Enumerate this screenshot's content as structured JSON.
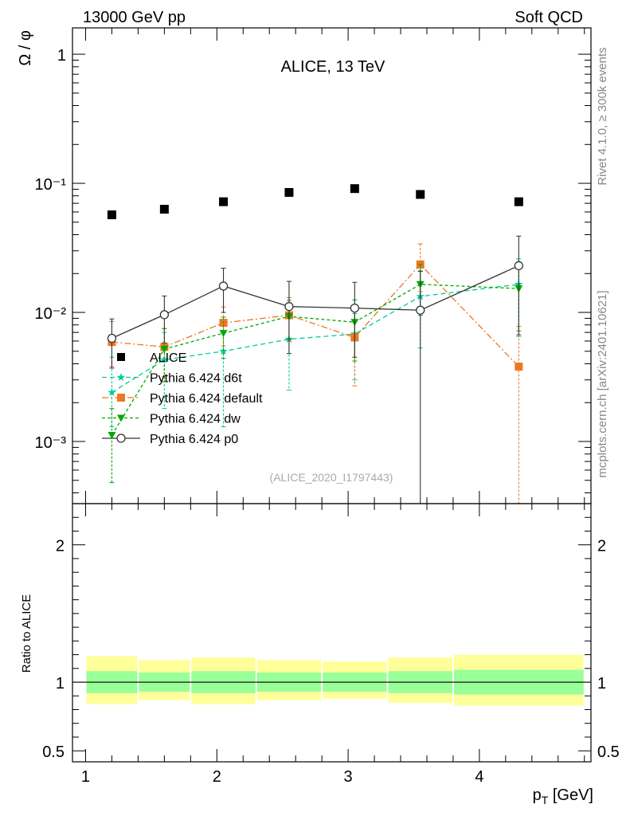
{
  "header": {
    "left_label": "13000 GeV pp",
    "right_label": "Soft QCD",
    "right_side_text": "Rivet 4.1.0, ≥ 300k events",
    "right_side_text2": "mcplots.cern.ch [arXiv:2401.10621]"
  },
  "chart_data": {
    "type": "scatter",
    "title": "ALICE, 13 TeV",
    "analysis_id": "(ALICE_2020_I1797443)",
    "xlabel": "p_T [GeV]",
    "ylabel": "Ω / φ",
    "ratio_ylabel": "Ratio to ALICE",
    "xlim": [
      0.9,
      4.85
    ],
    "ylim": [
      0.00033,
      1.6
    ],
    "yscale": "log",
    "ratio_ylim": [
      0.42,
      2.3
    ],
    "x_ticks": [
      "1",
      "2",
      "3",
      "4"
    ],
    "y_tick_labels": [
      {
        "value": 1,
        "label": "1"
      },
      {
        "value": 0.1,
        "label": "10⁻¹"
      },
      {
        "value": 0.01,
        "label": "10⁻²"
      },
      {
        "value": 0.001,
        "label": "10⁻³"
      }
    ],
    "ratio_ticks": [
      {
        "value": 0.5,
        "label": "0.5"
      },
      {
        "value": 1,
        "label": "1"
      },
      {
        "value": 2,
        "label": "2"
      }
    ],
    "data": {
      "name": "ALICE",
      "color": "#000000",
      "bins": [
        [
          1.0,
          1.4
        ],
        [
          1.4,
          1.8
        ],
        [
          1.8,
          2.3
        ],
        [
          2.3,
          2.8
        ],
        [
          2.8,
          3.3
        ],
        [
          3.3,
          3.8
        ],
        [
          3.8,
          4.8
        ]
      ],
      "x": [
        1.2,
        1.6,
        2.05,
        2.55,
        3.05,
        3.55,
        4.3
      ],
      "y": [
        0.057,
        0.063,
        0.072,
        0.085,
        0.091,
        0.082,
        0.072
      ],
      "stat_rel": [
        0.08,
        0.07,
        0.08,
        0.07,
        0.07,
        0.08,
        0.09
      ],
      "tot_up_rel": [
        0.19,
        0.16,
        0.18,
        0.16,
        0.15,
        0.18,
        0.2
      ],
      "tot_dn_rel": [
        0.16,
        0.13,
        0.16,
        0.13,
        0.12,
        0.15,
        0.17
      ]
    },
    "series": [
      {
        "name": "Pythia 6.424 d6t",
        "color": "#00cc99",
        "marker": "star",
        "dash": "6,4",
        "x": [
          1.2,
          1.6,
          2.05,
          2.55,
          3.05,
          3.55,
          4.3
        ],
        "y": [
          0.0024,
          0.0043,
          0.005,
          0.0062,
          0.0068,
          0.0133,
          0.0165
        ],
        "err_lo": [
          0.0013,
          0.0018,
          0.0013,
          0.0025,
          0.003,
          0.0053,
          0.0065
        ],
        "err_hi": [
          0.0045,
          0.007,
          0.0085,
          0.009,
          0.0098,
          0.021,
          0.026
        ]
      },
      {
        "name": "Pythia 6.424 default",
        "color": "#ee7722",
        "marker": "square",
        "dash": "8,3,2,3",
        "x": [
          1.2,
          1.6,
          2.05,
          2.55,
          3.05,
          3.55,
          4.3
        ],
        "y": [
          0.0059,
          0.0054,
          0.0083,
          0.0095,
          0.0064,
          0.0235,
          0.0038
        ],
        "err_lo": [
          0.0038,
          0.0032,
          0.0055,
          0.006,
          0.0027,
          0.0145,
          0.0003
        ],
        "err_hi": [
          0.0085,
          0.0075,
          0.011,
          0.013,
          0.0105,
          0.034,
          0.0078
        ]
      },
      {
        "name": "Pythia 6.424 dw",
        "color": "#00aa00",
        "marker": "triangle",
        "dash": "4,3",
        "x": [
          1.2,
          1.6,
          2.05,
          2.55,
          3.05,
          3.55,
          4.3
        ],
        "y": [
          0.00112,
          0.0052,
          0.0069,
          0.0093,
          0.0084,
          0.0165,
          0.0153
        ],
        "err_lo": [
          0.00048,
          0.0029,
          0.0044,
          0.0062,
          0.0042,
          0.0095,
          0.0072
        ],
        "err_hi": [
          0.0018,
          0.0075,
          0.0092,
          0.0124,
          0.0125,
          0.0235,
          0.024
        ]
      },
      {
        "name": "Pythia 6.424 p0",
        "color": "#333333",
        "marker": "circle",
        "dash": "",
        "x": [
          1.2,
          1.6,
          2.05,
          2.55,
          3.05,
          3.55,
          4.3
        ],
        "y": [
          0.0063,
          0.0096,
          0.016,
          0.0111,
          0.0108,
          0.0104,
          0.023
        ],
        "err_lo": [
          0.0037,
          0.0058,
          0.01,
          0.0048,
          0.0045,
          0.00025,
          0.0067
        ],
        "err_hi": [
          0.0089,
          0.0134,
          0.022,
          0.0174,
          0.0171,
          0.0208,
          0.039
        ]
      }
    ],
    "legend": [
      "ALICE",
      "Pythia 6.424 d6t",
      "Pythia 6.424 default",
      "Pythia 6.424 dw",
      "Pythia 6.424 p0"
    ],
    "legend_position": "lower-left",
    "ratio_band_colors": {
      "total": "#ffff99",
      "stat": "#99ff99"
    }
  }
}
